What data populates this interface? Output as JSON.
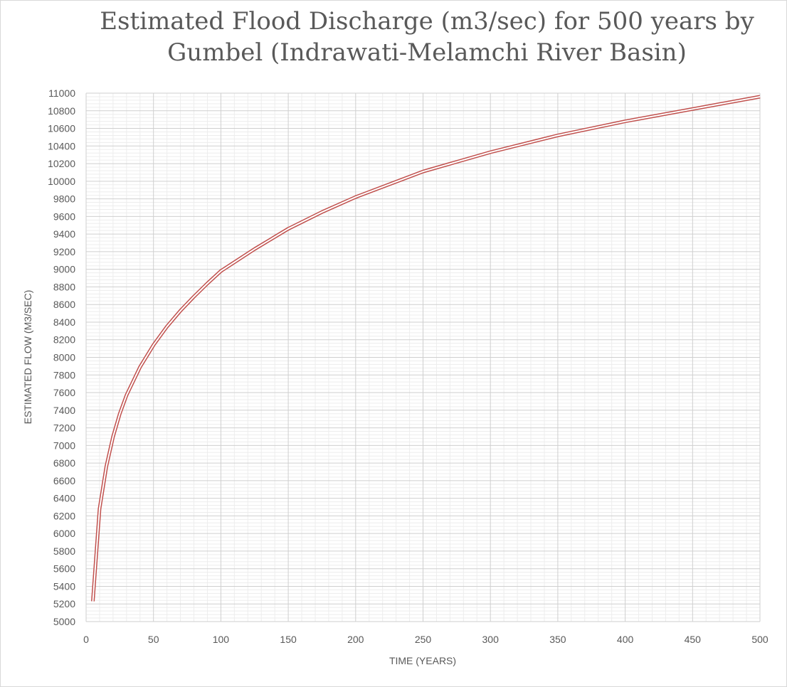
{
  "chart_data": {
    "type": "line",
    "title_lines": [
      "Estimated Flood Discharge (m3/sec) for 500 years by",
      "Gumbel (Indrawati-Melamchi River Basin)"
    ],
    "xlabel": "TIME (YEARS)",
    "ylabel": "ESTIMATED FLOW (M3/SEC)",
    "xlim": [
      0,
      500
    ],
    "ylim": [
      5000,
      11000
    ],
    "x_ticks": [
      0,
      50,
      100,
      150,
      200,
      250,
      300,
      350,
      400,
      450,
      500
    ],
    "y_ticks": [
      5000,
      5200,
      5400,
      5600,
      5800,
      6000,
      6200,
      6400,
      6600,
      6800,
      7000,
      7200,
      7400,
      7600,
      7800,
      8000,
      8200,
      8400,
      8600,
      8800,
      9000,
      9200,
      9400,
      9600,
      9800,
      10000,
      10200,
      10400,
      10600,
      10800,
      11000
    ],
    "x_tick_labels": [
      "0",
      "50",
      "100",
      "150",
      "200",
      "250",
      "300",
      "350",
      "400",
      "450",
      "500"
    ],
    "y_tick_labels": [
      "5000",
      "5200",
      "5400",
      "5600",
      "5800",
      "6000",
      "6200",
      "6400",
      "6600",
      "6800",
      "7000",
      "7200",
      "7400",
      "7600",
      "7800",
      "8000",
      "8200",
      "8400",
      "8600",
      "8800",
      "9000",
      "9200",
      "9400",
      "9600",
      "9800",
      "10000",
      "10200",
      "10400",
      "10600",
      "10800",
      "11000"
    ],
    "grid": true,
    "minor_grid": true,
    "legend": "none",
    "series": [
      {
        "color": "#c0504d",
        "x": [
          5,
          10,
          15,
          20,
          25,
          30,
          40,
          50,
          60,
          70,
          80,
          90,
          100,
          125,
          150,
          175,
          200,
          250,
          300,
          350,
          400,
          450,
          500
        ],
        "values": [
          5230,
          6280,
          6760,
          7100,
          7360,
          7570,
          7890,
          8140,
          8350,
          8530,
          8690,
          8840,
          8980,
          9230,
          9460,
          9650,
          9820,
          10110,
          10330,
          10520,
          10680,
          10820,
          10960
        ]
      }
    ]
  }
}
